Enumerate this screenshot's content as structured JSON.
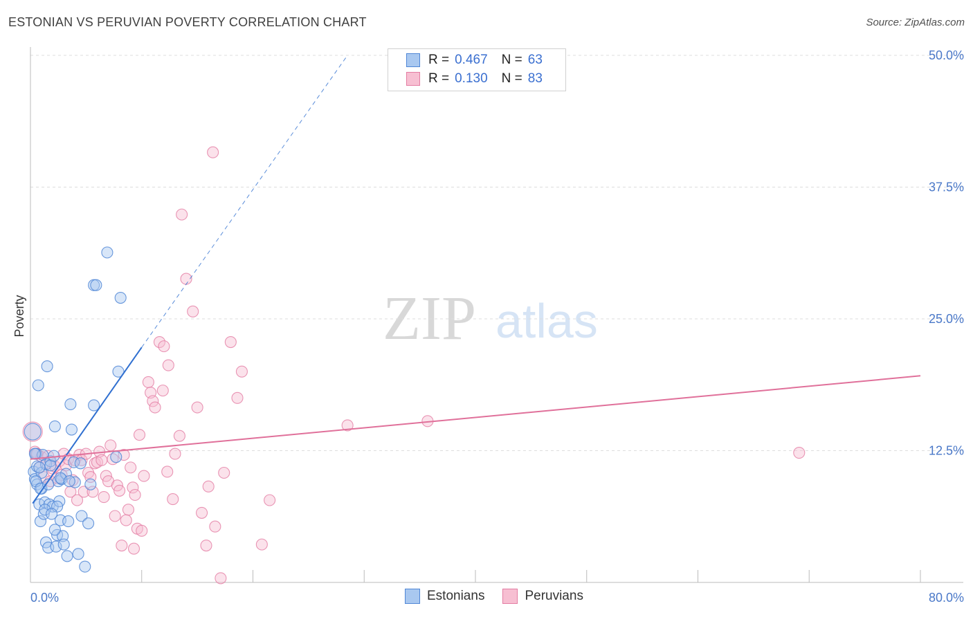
{
  "title": "ESTONIAN VS PERUVIAN POVERTY CORRELATION CHART",
  "source": "Source: ZipAtlas.com",
  "watermark": {
    "zip": "ZIP",
    "atlas": "atlas"
  },
  "legend": {
    "rows": [
      {
        "r_label": "R =",
        "r_value": "0.467",
        "n_label": "N =",
        "n_value": "63"
      },
      {
        "r_label": "R =",
        "r_value": "0.130",
        "n_label": "N =",
        "n_value": "83"
      }
    ]
  },
  "bottom_legend": {
    "estonians": "Estonians",
    "peruvians": "Peruvians"
  },
  "colors": {
    "estonian_fill": "#a9c8f0",
    "estonian_stroke": "#4f86d6",
    "estonian_line": "#2f6fd0",
    "peruvian_fill": "#f7bfd2",
    "peruvian_stroke": "#e47ca2",
    "peruvian_line": "#e0709a"
  },
  "chart_data": {
    "type": "scatter",
    "title": "ESTONIAN VS PERUVIAN POVERTY CORRELATION CHART",
    "xlabel": "",
    "ylabel": "Poverty",
    "xlim": [
      0,
      80
    ],
    "ylim": [
      0,
      50
    ],
    "x_tick_labels": [
      "0.0%",
      "80.0%"
    ],
    "y_ticks": [
      12.5,
      25.0,
      37.5,
      50.0
    ],
    "y_tick_labels": [
      "12.5%",
      "25.0%",
      "37.5%",
      "50.0%"
    ],
    "grid": true,
    "series": [
      {
        "name": "Estonians",
        "r": 0.467,
        "n": 63,
        "trend": {
          "x0": 0.2,
          "y0": 7.5,
          "x1": 10.0,
          "y1": 22.3,
          "dash_to_x": 28.5,
          "dash_to_y": 50.0
        },
        "points": [
          [
            0.2,
            14.3
          ],
          [
            0.3,
            10.5
          ],
          [
            0.4,
            9.8
          ],
          [
            0.5,
            12.2
          ],
          [
            0.6,
            11.0
          ],
          [
            0.6,
            9.3
          ],
          [
            0.8,
            7.4
          ],
          [
            0.9,
            5.8
          ],
          [
            1.0,
            10.4
          ],
          [
            1.0,
            8.9
          ],
          [
            1.1,
            12.1
          ],
          [
            1.2,
            6.5
          ],
          [
            1.3,
            7.6
          ],
          [
            1.4,
            3.8
          ],
          [
            1.4,
            11.2
          ],
          [
            1.6,
            3.3
          ],
          [
            1.7,
            7.4
          ],
          [
            1.8,
            11.5
          ],
          [
            2.0,
            7.2
          ],
          [
            2.2,
            14.8
          ],
          [
            2.3,
            3.4
          ],
          [
            2.4,
            4.5
          ],
          [
            2.5,
            9.6
          ],
          [
            2.6,
            7.7
          ],
          [
            2.7,
            5.9
          ],
          [
            2.8,
            9.8
          ],
          [
            2.9,
            4.4
          ],
          [
            3.0,
            3.6
          ],
          [
            3.2,
            10.3
          ],
          [
            3.3,
            2.5
          ],
          [
            3.4,
            5.8
          ],
          [
            3.6,
            16.9
          ],
          [
            3.7,
            14.5
          ],
          [
            3.9,
            11.4
          ],
          [
            4.0,
            9.5
          ],
          [
            4.3,
            2.7
          ],
          [
            4.5,
            11.3
          ],
          [
            4.6,
            6.3
          ],
          [
            4.9,
            1.5
          ],
          [
            5.2,
            5.6
          ],
          [
            5.4,
            9.3
          ],
          [
            5.7,
            28.2
          ],
          [
            5.7,
            16.8
          ],
          [
            5.9,
            28.2
          ],
          [
            6.9,
            31.3
          ],
          [
            7.7,
            11.9
          ],
          [
            7.9,
            20.0
          ],
          [
            8.1,
            27.0
          ],
          [
            0.7,
            18.7
          ],
          [
            1.5,
            20.5
          ],
          [
            0.5,
            9.6
          ],
          [
            0.9,
            8.9
          ],
          [
            1.8,
            11.1
          ],
          [
            2.1,
            12.0
          ],
          [
            2.4,
            7.2
          ],
          [
            0.4,
            12.2
          ],
          [
            0.8,
            10.9
          ],
          [
            1.3,
            6.9
          ],
          [
            1.9,
            6.5
          ],
          [
            2.7,
            9.9
          ],
          [
            3.5,
            9.6
          ],
          [
            1.6,
            9.3
          ],
          [
            2.2,
            5.0
          ]
        ]
      },
      {
        "name": "Peruvians",
        "r": 0.13,
        "n": 83,
        "trend": {
          "x0": 0.0,
          "y0": 11.7,
          "x1": 80.0,
          "y1": 19.6
        },
        "points": [
          [
            0.2,
            14.3
          ],
          [
            0.4,
            12.4
          ],
          [
            0.6,
            12.2
          ],
          [
            0.8,
            10.9
          ],
          [
            1.0,
            11.9
          ],
          [
            1.2,
            10.0
          ],
          [
            1.4,
            11.3
          ],
          [
            1.6,
            12.0
          ],
          [
            1.8,
            9.6
          ],
          [
            2.0,
            10.8
          ],
          [
            2.2,
            11.0
          ],
          [
            2.4,
            9.9
          ],
          [
            2.6,
            11.5
          ],
          [
            2.8,
            10.2
          ],
          [
            3.0,
            12.2
          ],
          [
            3.2,
            11.1
          ],
          [
            3.4,
            11.7
          ],
          [
            3.6,
            8.6
          ],
          [
            3.8,
            9.7
          ],
          [
            4.0,
            11.6
          ],
          [
            4.2,
            7.8
          ],
          [
            4.4,
            12.1
          ],
          [
            4.6,
            11.6
          ],
          [
            4.8,
            8.6
          ],
          [
            5.0,
            12.2
          ],
          [
            5.2,
            10.4
          ],
          [
            5.4,
            10.0
          ],
          [
            5.6,
            8.6
          ],
          [
            5.8,
            11.3
          ],
          [
            6.0,
            11.4
          ],
          [
            6.2,
            12.4
          ],
          [
            6.4,
            11.6
          ],
          [
            6.6,
            8.1
          ],
          [
            6.8,
            10.1
          ],
          [
            7.0,
            9.6
          ],
          [
            7.2,
            13.0
          ],
          [
            7.4,
            11.7
          ],
          [
            7.6,
            6.3
          ],
          [
            7.8,
            9.2
          ],
          [
            8.0,
            8.7
          ],
          [
            8.2,
            3.5
          ],
          [
            8.4,
            12.1
          ],
          [
            8.6,
            5.9
          ],
          [
            8.8,
            6.9
          ],
          [
            9.0,
            10.9
          ],
          [
            9.2,
            9.0
          ],
          [
            9.4,
            8.3
          ],
          [
            9.6,
            5.1
          ],
          [
            9.8,
            14.0
          ],
          [
            10.0,
            4.9
          ],
          [
            10.2,
            10.1
          ],
          [
            10.6,
            19.0
          ],
          [
            10.8,
            18.0
          ],
          [
            11.0,
            17.2
          ],
          [
            11.2,
            16.6
          ],
          [
            11.6,
            22.8
          ],
          [
            12.0,
            22.4
          ],
          [
            12.4,
            20.6
          ],
          [
            12.8,
            7.9
          ],
          [
            13.0,
            12.2
          ],
          [
            13.6,
            34.9
          ],
          [
            14.0,
            28.8
          ],
          [
            14.6,
            25.7
          ],
          [
            15.0,
            16.6
          ],
          [
            15.4,
            6.6
          ],
          [
            15.8,
            3.5
          ],
          [
            16.0,
            9.1
          ],
          [
            16.6,
            5.3
          ],
          [
            17.1,
            0.4
          ],
          [
            17.4,
            10.4
          ],
          [
            18.0,
            22.8
          ],
          [
            18.6,
            17.5
          ],
          [
            19.0,
            20.0
          ],
          [
            20.8,
            3.6
          ],
          [
            21.5,
            7.8
          ],
          [
            13.4,
            13.9
          ],
          [
            16.4,
            40.8
          ],
          [
            28.5,
            14.9
          ],
          [
            35.7,
            15.3
          ],
          [
            69.1,
            12.3
          ],
          [
            11.9,
            18.2
          ],
          [
            12.3,
            10.5
          ],
          [
            9.3,
            3.2
          ]
        ]
      }
    ]
  }
}
